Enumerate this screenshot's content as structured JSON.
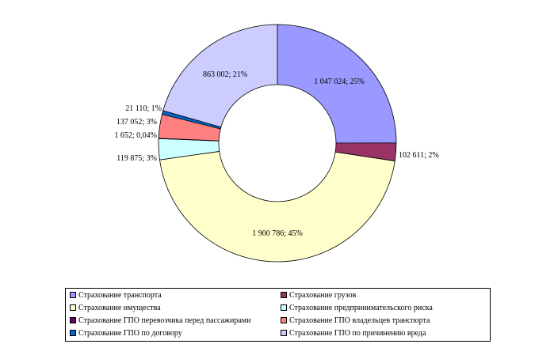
{
  "chart_data": {
    "type": "pie",
    "variant": "donut",
    "slices": [
      {
        "name": "Страхование транспорта",
        "value": 1047024,
        "label": "1 047 024; 25%",
        "color": "#9999ff"
      },
      {
        "name": "Страхование грузов",
        "value": 102611,
        "label": "102 611; 2%",
        "color": "#993366"
      },
      {
        "name": "Страхование имущества",
        "value": 1900786,
        "label": "1 900 786; 45%",
        "color": "#ffffcc"
      },
      {
        "name": "Страхование предпринимательского риска",
        "value": 119875,
        "label": "119 875; 3%",
        "color": "#ccffff"
      },
      {
        "name": "Страхование ГПО перевозчика перед пассажирами",
        "value": 1652,
        "label": "1 652; 0,04%",
        "color": "#660066"
      },
      {
        "name": "Страхование ГПО владельцев транспорта",
        "value": 137052,
        "label": "137 052; 3%",
        "color": "#ff8080"
      },
      {
        "name": "Страхование ГПО по договору",
        "value": 21110,
        "label": "21 110; 1%",
        "color": "#0066cc"
      },
      {
        "name": "Страхование ГПО по причинению вреда",
        "value": 863002,
        "label": "863 002; 21%",
        "color": "#ccccff"
      }
    ],
    "legend_position": "bottom",
    "legend_columns": 2
  }
}
